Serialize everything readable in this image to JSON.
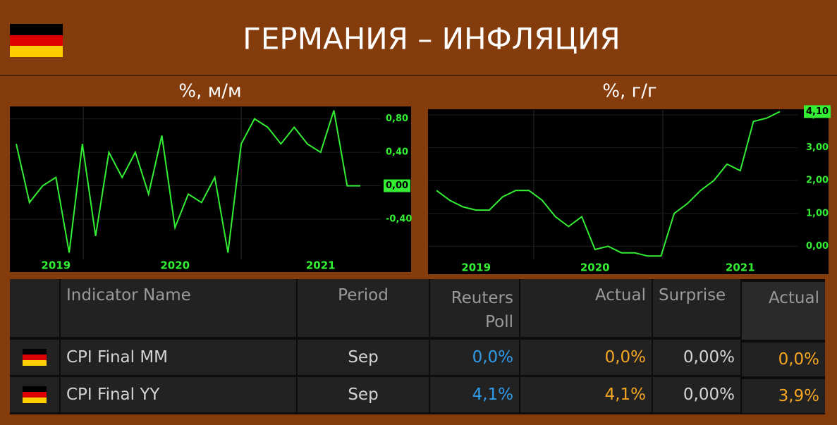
{
  "header": {
    "title": "ГЕРМАНИЯ – ИНФЛЯЦИЯ"
  },
  "chart_data": [
    {
      "type": "line",
      "subtitle": "%, м/м",
      "categories": [
        null,
        null,
        null,
        "2019",
        null,
        null,
        null,
        null,
        null,
        null,
        null,
        null,
        "2020",
        null,
        null,
        null,
        null,
        null,
        null,
        null,
        null,
        null,
        null,
        "2021",
        null,
        null,
        null
      ],
      "values": [
        0.5,
        -0.2,
        0.0,
        0.1,
        -0.8,
        0.5,
        -0.6,
        0.4,
        0.1,
        0.4,
        -0.1,
        0.6,
        -0.5,
        -0.1,
        -0.2,
        0.1,
        -0.8,
        0.5,
        0.8,
        0.7,
        0.5,
        0.7,
        0.5,
        0.4,
        0.9,
        0.0,
        0.0
      ],
      "value_labels": [
        null,
        null,
        null,
        null,
        null,
        null,
        null,
        null,
        null,
        null,
        null,
        null,
        null,
        null,
        null,
        null,
        null,
        null,
        null,
        null,
        null,
        null,
        null,
        null,
        null,
        null,
        "0,00"
      ],
      "color": "#33ee33",
      "ylim": [
        -0.88,
        0.94
      ],
      "yticks": [
        {
          "value": 0.8,
          "label": "0,80"
        },
        {
          "value": 0.4,
          "label": "0,40"
        },
        {
          "value": 0,
          "label": "0,00"
        },
        {
          "value": -0.4,
          "label": "-0,40"
        }
      ]
    },
    {
      "type": "line",
      "subtitle": "%, г/г",
      "categories": [
        null,
        null,
        null,
        "2019",
        null,
        null,
        null,
        null,
        null,
        null,
        null,
        null,
        "2020",
        null,
        null,
        null,
        null,
        null,
        null,
        null,
        null,
        null,
        null,
        "2021",
        null,
        null,
        null
      ],
      "values": [
        1.7,
        1.4,
        1.2,
        1.1,
        1.1,
        1.5,
        1.7,
        1.7,
        1.4,
        0.9,
        0.6,
        0.9,
        -0.1,
        0.0,
        -0.2,
        -0.2,
        -0.3,
        -0.3,
        1.0,
        1.3,
        1.7,
        2.0,
        2.5,
        2.3,
        3.8,
        3.9,
        4.1
      ],
      "value_labels": [
        null,
        null,
        null,
        null,
        null,
        null,
        null,
        null,
        null,
        null,
        null,
        null,
        null,
        null,
        null,
        null,
        null,
        null,
        null,
        null,
        null,
        null,
        null,
        null,
        null,
        null,
        "4,10"
      ],
      "color": "#33ee33",
      "ylim": [
        -0.4,
        4.15
      ],
      "yticks": [
        {
          "value": 4,
          "label": "4,00"
        },
        {
          "value": 3,
          "label": "3,00"
        },
        {
          "value": 2,
          "label": "2,00"
        },
        {
          "value": 1,
          "label": "1,00"
        },
        {
          "value": 0,
          "label": "0,00"
        }
      ]
    }
  ],
  "table": {
    "header": [
      "Indicator Name",
      "Period",
      "Reuters Poll",
      "Actual",
      "Surprise",
      "Actual"
    ],
    "rows": [
      [
        "CPI Final MM",
        "Sep",
        "0,0%",
        "0,0%",
        "0,00%",
        "0,0%"
      ],
      [
        "CPI Final YY",
        "Sep",
        "4,1%",
        "4,1%",
        "0,00%",
        "3,9%"
      ]
    ]
  }
}
